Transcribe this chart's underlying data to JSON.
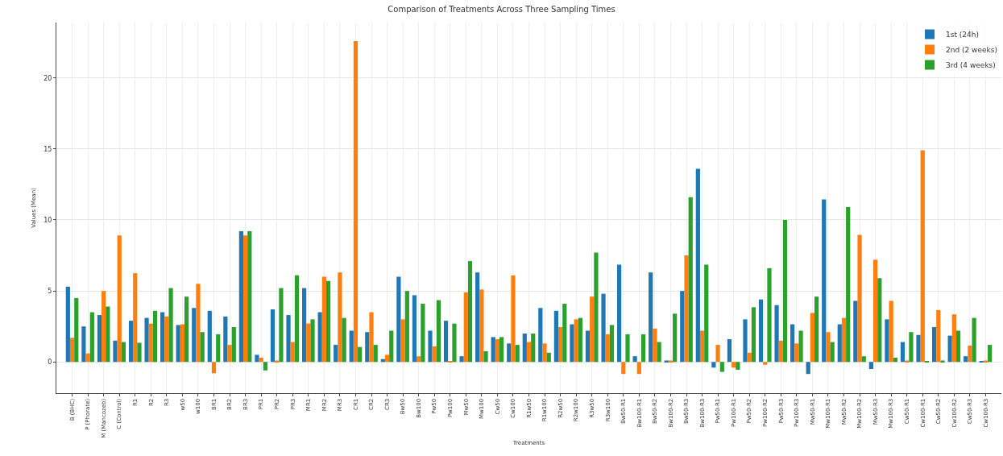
{
  "chart_data": {
    "type": "bar",
    "title": "Comparison of Treatments Across Three Sampling Times",
    "xlabel": "Treatments",
    "ylabel": "Values (Mean)",
    "categories": [
      "B (BHC)",
      "P (Phorate)",
      "M (Mancozeb)",
      "C (Control)",
      "R1",
      "R2",
      "R3",
      "w50",
      "w100",
      "BR1",
      "BR2",
      "BR3",
      "PR1",
      "PR2",
      "PR3",
      "MR1",
      "MR2",
      "MR3",
      "CR1",
      "CR2",
      "CR3",
      "Bw50",
      "Bw100",
      "Pw50",
      "Pw100",
      "Mw50",
      "Mw100",
      "Cw50",
      "Cw100",
      "R1w50",
      "R1w100",
      "R2w50",
      "R2w100",
      "R3w50",
      "R3w100",
      "Bw50-R1",
      "Bw100-R1",
      "Bw50-R2",
      "Bw100-R2",
      "Bw50-R3",
      "Bw100-R3",
      "Pw50-R1",
      "Pw100-R1",
      "Pw50-R2",
      "Pw100-R2",
      "Pw50-R3",
      "Pw100-R3",
      "Mw50-R1",
      "Mw100-R1",
      "Mw50-R2",
      "Mw100-R2",
      "Mw50-R3",
      "Mw100-R3",
      "Cw50-R1",
      "Cw100-R1",
      "Cw50-R2",
      "Cw100-R2",
      "Cw50-R3",
      "Cw100-R3"
    ],
    "series": [
      {
        "name": "1st (24h)",
        "color": "#1f77b4",
        "values": [
          5.3,
          2.5,
          3.3,
          1.5,
          2.9,
          3.1,
          3.5,
          2.6,
          3.8,
          3.6,
          3.2,
          9.2,
          0.5,
          3.7,
          3.3,
          5.2,
          3.5,
          1.2,
          2.2,
          2.1,
          0.2,
          6.0,
          4.7,
          2.2,
          2.9,
          0.4,
          6.3,
          1.75,
          1.3,
          2.0,
          3.8,
          3.6,
          2.65,
          2.2,
          4.8,
          6.85,
          0.4,
          6.3,
          0.1,
          5.0,
          13.6,
          -0.4,
          1.6,
          3.0,
          4.4,
          4.0,
          2.65,
          -0.85,
          11.45,
          2.65,
          4.3,
          -0.5,
          3.0,
          1.4,
          1.9,
          2.45,
          1.85,
          0.4,
          0.05
        ]
      },
      {
        "name": "2nd (2 weeks)",
        "color": "#ff7f0e",
        "values": [
          1.7,
          0.6,
          5.0,
          8.9,
          6.25,
          2.7,
          3.2,
          2.65,
          5.5,
          -0.8,
          1.2,
          8.9,
          0.3,
          0.1,
          1.4,
          2.7,
          6.0,
          6.3,
          22.6,
          3.5,
          0.5,
          3.0,
          0.4,
          1.1,
          0.05,
          4.9,
          5.1,
          1.6,
          6.1,
          1.4,
          1.3,
          2.45,
          3.0,
          4.6,
          1.95,
          -0.85,
          -0.85,
          2.35,
          0.1,
          7.5,
          2.2,
          1.2,
          -0.4,
          0.65,
          -0.2,
          1.5,
          1.3,
          3.45,
          2.1,
          3.1,
          8.95,
          7.2,
          4.3,
          0.1,
          14.9,
          3.65,
          3.35,
          1.15,
          0.1
        ]
      },
      {
        "name": "3rd (4 weeks)",
        "color": "#2ca02c",
        "values": [
          4.5,
          3.5,
          3.9,
          1.4,
          1.35,
          3.6,
          5.2,
          4.6,
          2.1,
          1.95,
          2.45,
          9.2,
          -0.6,
          5.2,
          6.1,
          3.0,
          5.7,
          3.1,
          1.05,
          1.2,
          2.2,
          5.0,
          4.1,
          4.35,
          2.7,
          7.1,
          0.75,
          1.75,
          1.2,
          2.0,
          0.65,
          4.1,
          3.1,
          7.7,
          2.6,
          1.95,
          1.95,
          1.4,
          3.4,
          11.6,
          6.85,
          -0.7,
          -0.55,
          3.85,
          6.6,
          10.0,
          2.2,
          4.6,
          1.4,
          10.9,
          0.4,
          5.9,
          0.3,
          2.1,
          0.05,
          0.1,
          2.2,
          3.1,
          1.2
        ]
      }
    ],
    "ylim": [
      -2.2,
      23.9
    ],
    "yticks": [
      0,
      5,
      10,
      15,
      20
    ],
    "grid": true,
    "legend": "top right"
  }
}
